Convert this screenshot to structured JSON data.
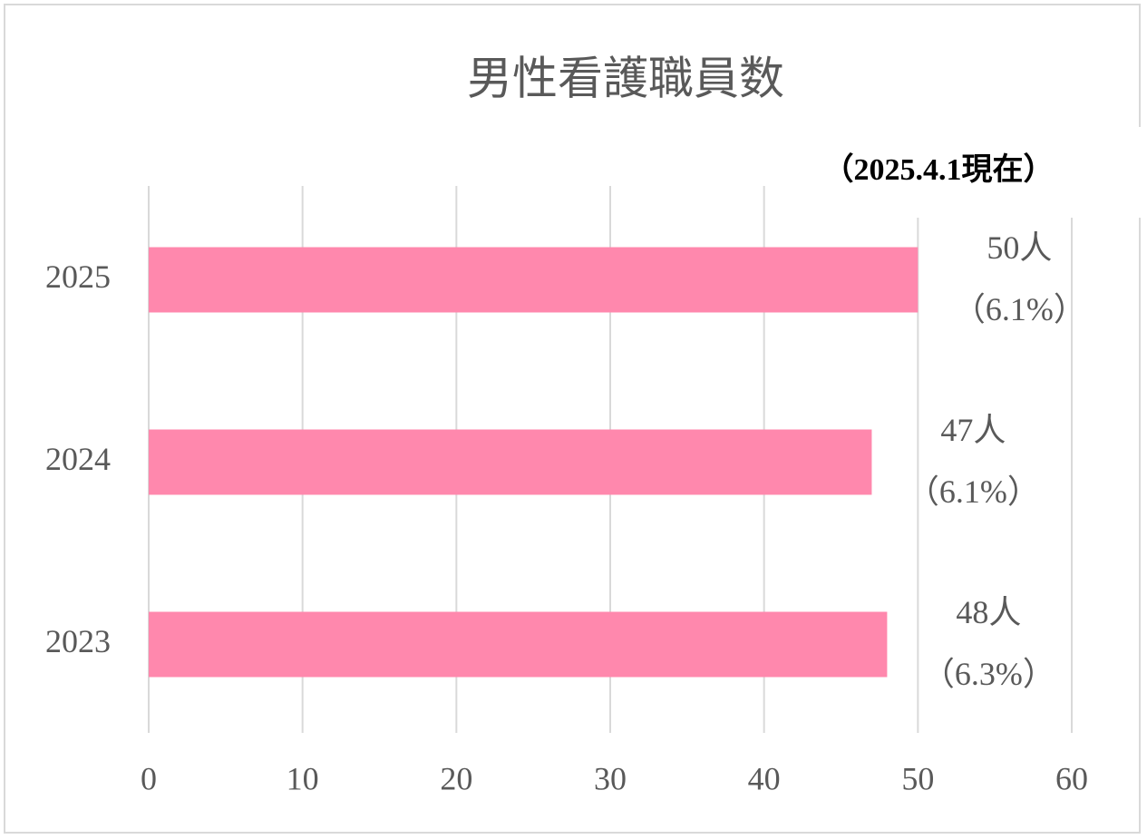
{
  "chart_data": {
    "type": "hbar",
    "title": "男性看護職員数",
    "annotation": "（2025.4.1現在）",
    "categories": [
      "2025",
      "2024",
      "2023"
    ],
    "values": [
      50,
      47,
      48
    ],
    "value_labels": [
      "50人",
      "47人",
      "48人"
    ],
    "share_labels": [
      "（6.1%）",
      "（6.1%）",
      "（6.3%）"
    ],
    "color": "#ff88ad",
    "xlim": [
      0,
      60
    ],
    "xticks": [
      0,
      10,
      20,
      30,
      40,
      50,
      60
    ],
    "grid": true
  }
}
